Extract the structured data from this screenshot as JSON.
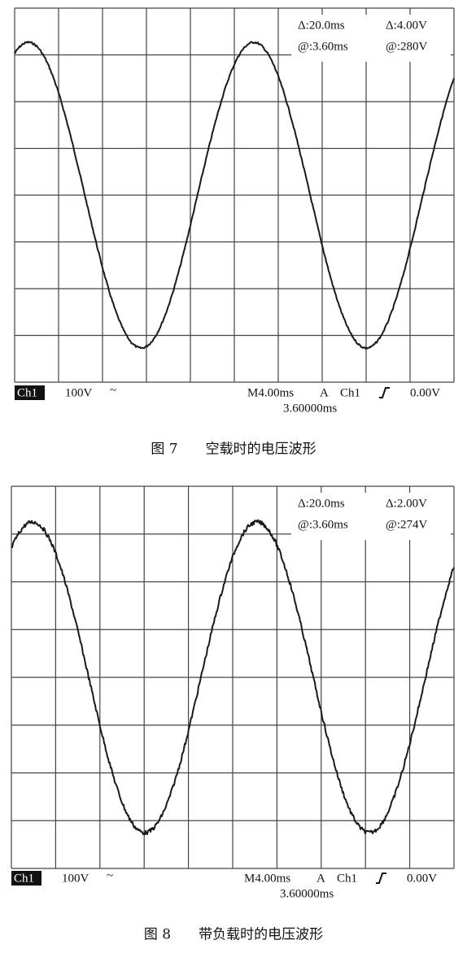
{
  "figures": [
    {
      "readouts": {
        "delta_time": "Δ:20.0ms",
        "delta_volt": "Δ:4.00V",
        "at_time": "@:3.60ms",
        "at_volt": "@:280V"
      },
      "status": {
        "channel": "Ch1",
        "scale": "100V",
        "coupling": "~",
        "timebase": "M4.00ms",
        "trigger_mode": "A",
        "trigger_source": "Ch1",
        "trigger_level": "0.00V",
        "position": "3.60000ms"
      },
      "caption": "图 7　　空载时的电压波形"
    },
    {
      "readouts": {
        "delta_time": "Δ:20.0ms",
        "delta_volt": "Δ:2.00V",
        "at_time": "@:3.60ms",
        "at_volt": "@:274V"
      },
      "status": {
        "channel": "Ch1",
        "scale": "100V",
        "coupling": "~",
        "timebase": "M4.00ms",
        "trigger_mode": "A",
        "trigger_source": "Ch1",
        "trigger_level": "0.00V",
        "position": "3.60000ms"
      },
      "caption": "图 8　　带负载时的电压波形"
    }
  ]
}
